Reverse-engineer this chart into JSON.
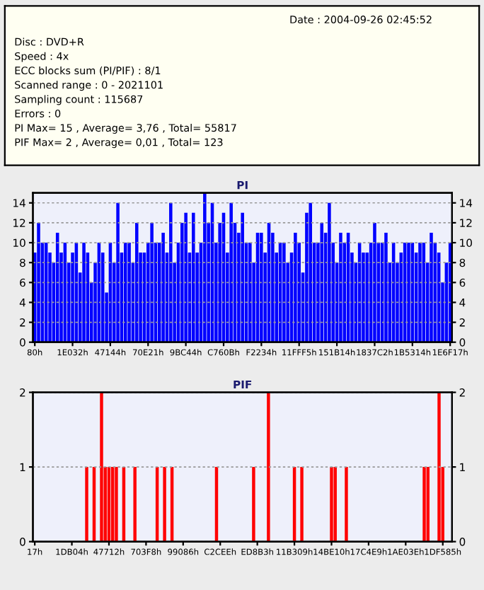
{
  "chart_data": [
    {
      "type": "other",
      "annotations": [
        "Date : 2004-09-26 02:45:52",
        "Disc : DVD+R",
        "Speed : 4x",
        "ECC blocks sum (PI/PIF) : 8/1",
        "Scanned range : 0 - 2021101",
        "Sampling count : 115687",
        "Errors : 0",
        "PI Max= 15 , Average= 3,76 , Total= 55817",
        "PIF Max= 2 , Average= 0,01 , Total= 123"
      ]
    },
    {
      "type": "bar",
      "title": "PI",
      "color": "#0000ff",
      "grid": "y",
      "ylim": [
        0,
        15
      ],
      "yticks": [
        0,
        2,
        4,
        6,
        8,
        10,
        12,
        14
      ],
      "y2lim": [
        0,
        15
      ],
      "y2ticks": [
        0,
        2,
        4,
        6,
        8,
        10,
        12,
        14
      ],
      "categories": [
        "80h",
        null,
        null,
        null,
        null,
        null,
        null,
        null,
        null,
        null,
        "1E032h",
        null,
        null,
        null,
        null,
        null,
        null,
        null,
        null,
        null,
        "47144h",
        null,
        null,
        null,
        null,
        null,
        null,
        null,
        null,
        null,
        "70E21h",
        null,
        null,
        null,
        null,
        null,
        null,
        null,
        null,
        null,
        "9BC44h",
        null,
        null,
        null,
        null,
        null,
        null,
        null,
        null,
        null,
        "C760Bh",
        null,
        null,
        null,
        null,
        null,
        null,
        null,
        null,
        null,
        "F2234h",
        null,
        null,
        null,
        null,
        null,
        null,
        null,
        null,
        null,
        "11FFF5h",
        null,
        null,
        null,
        null,
        null,
        null,
        null,
        null,
        null,
        "151B14h",
        null,
        null,
        null,
        null,
        null,
        null,
        null,
        null,
        null,
        "1837C2h",
        null,
        null,
        null,
        null,
        null,
        null,
        null,
        null,
        null,
        "1B5314h",
        null,
        null,
        null,
        null,
        null,
        null,
        null,
        null,
        null,
        "1E6F17h"
      ],
      "values": [
        9,
        12,
        10,
        10,
        9,
        8,
        11,
        9,
        10,
        8,
        9,
        10,
        7,
        10,
        9,
        6,
        8,
        10,
        9,
        5,
        10,
        8,
        14,
        9,
        10,
        10,
        8,
        12,
        9,
        9,
        10,
        12,
        10,
        10,
        11,
        9,
        14,
        8,
        10,
        12,
        13,
        9,
        13,
        9,
        10,
        15,
        12,
        14,
        10,
        12,
        13,
        9,
        14,
        12,
        11,
        13,
        10,
        10,
        8,
        11,
        11,
        9,
        12,
        11,
        9,
        10,
        10,
        8,
        9,
        11,
        10,
        7,
        13,
        14,
        10,
        10,
        12,
        11,
        14,
        10,
        8,
        11,
        10,
        11,
        9,
        8,
        10,
        9,
        9,
        10,
        12,
        10,
        10,
        11,
        8,
        10,
        8,
        9,
        10,
        10,
        10,
        9,
        10,
        10,
        8,
        11,
        10,
        9,
        6,
        8,
        10
      ]
    },
    {
      "type": "bar",
      "title": "PIF",
      "color": "#ff0000",
      "grid": "y",
      "ylim": [
        0,
        2
      ],
      "yticks": [
        0,
        1,
        2
      ],
      "y2lim": [
        0,
        2
      ],
      "y2ticks": [
        0,
        1,
        2
      ],
      "categories": [
        "17h",
        null,
        null,
        null,
        null,
        null,
        null,
        null,
        null,
        null,
        "1DB04h",
        null,
        null,
        null,
        null,
        null,
        null,
        null,
        null,
        null,
        "47712h",
        null,
        null,
        null,
        null,
        null,
        null,
        null,
        null,
        null,
        "703F8h",
        null,
        null,
        null,
        null,
        null,
        null,
        null,
        null,
        null,
        "99086h",
        null,
        null,
        null,
        null,
        null,
        null,
        null,
        null,
        null,
        "C2CEEh",
        null,
        null,
        null,
        null,
        null,
        null,
        null,
        null,
        null,
        "ED8B3h",
        null,
        null,
        null,
        null,
        null,
        null,
        null,
        null,
        null,
        "11B309h",
        null,
        null,
        null,
        null,
        null,
        null,
        null,
        null,
        null,
        "14BE10h",
        null,
        null,
        null,
        null,
        null,
        null,
        null,
        null,
        null,
        "17C4E9h",
        null,
        null,
        null,
        null,
        null,
        null,
        null,
        null,
        null,
        "1AE03Eh",
        null,
        null,
        null,
        null,
        null,
        null,
        null,
        null,
        null,
        "1DF585h",
        null,
        null
      ],
      "values": [
        0,
        0,
        0,
        0,
        0,
        0,
        0,
        0,
        0,
        0,
        0,
        0,
        0,
        0,
        1,
        0,
        1,
        0,
        2,
        1,
        1,
        1,
        1,
        0,
        1,
        0,
        0,
        1,
        0,
        0,
        0,
        0,
        0,
        1,
        0,
        1,
        0,
        1,
        0,
        0,
        0,
        0,
        0,
        0,
        0,
        0,
        0,
        0,
        0,
        1,
        0,
        0,
        0,
        0,
        0,
        0,
        0,
        0,
        0,
        1,
        0,
        0,
        0,
        2,
        0,
        0,
        0,
        0,
        0,
        0,
        1,
        0,
        1,
        0,
        0,
        0,
        0,
        0,
        0,
        0,
        1,
        1,
        0,
        0,
        1,
        0,
        0,
        0,
        0,
        0,
        0,
        0,
        0,
        0,
        0,
        0,
        0,
        0,
        0,
        0,
        0,
        0,
        0,
        0,
        0,
        1,
        1,
        0,
        0,
        2,
        1,
        0,
        0
      ]
    }
  ]
}
